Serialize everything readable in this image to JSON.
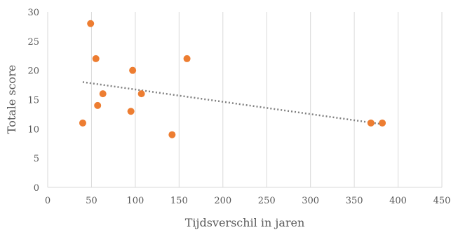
{
  "chart_data": {
    "type": "scatter",
    "title": "",
    "xlabel": "Tijdsverschil in jaren",
    "ylabel": "Totale score",
    "xlim": [
      0,
      450
    ],
    "ylim": [
      0,
      30
    ],
    "x_ticks": [
      0,
      50,
      100,
      150,
      200,
      250,
      300,
      350,
      400,
      450
    ],
    "y_ticks": [
      0,
      5,
      10,
      15,
      20,
      25,
      30
    ],
    "grid": "vertical",
    "legend": "none",
    "series": [
      {
        "marker": "circle",
        "color": "#ED7D31",
        "points": [
          {
            "x": 40,
            "y": 11
          },
          {
            "x": 49,
            "y": 28
          },
          {
            "x": 55,
            "y": 22
          },
          {
            "x": 57,
            "y": 14
          },
          {
            "x": 63,
            "y": 16
          },
          {
            "x": 95,
            "y": 13
          },
          {
            "x": 97,
            "y": 20
          },
          {
            "x": 107,
            "y": 16
          },
          {
            "x": 142,
            "y": 9
          },
          {
            "x": 159,
            "y": 22
          },
          {
            "x": 369,
            "y": 11
          },
          {
            "x": 382,
            "y": 11
          }
        ]
      }
    ],
    "trendline": {
      "type": "linear",
      "style": "dotted",
      "color": "#808080",
      "from": {
        "x": 40,
        "y": 18
      },
      "to": {
        "x": 382,
        "y": 10.8
      }
    }
  }
}
